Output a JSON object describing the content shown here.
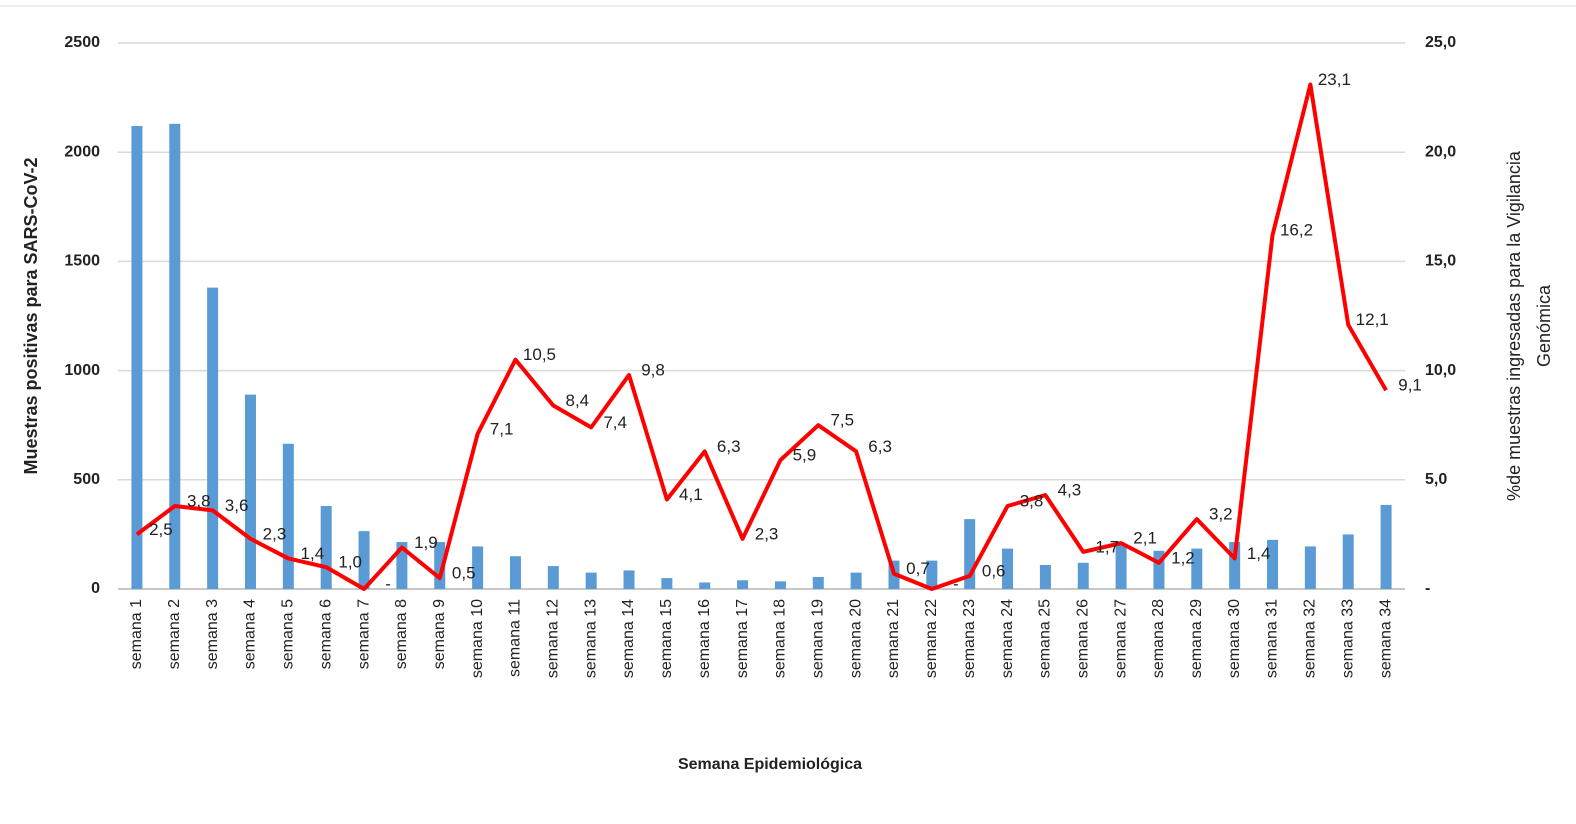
{
  "chart_data": {
    "type": "bar-line",
    "xlabel": "Semana Epidemiológica",
    "ylabel": "Muestras positivas para SARS-CoV-2",
    "y2label": [
      "%de muestras ingresadas para la Vigilancia",
      "Genómica"
    ],
    "categories": [
      "semana 1",
      "semana 2",
      "semana 3",
      "semana 4",
      "semana 5",
      "semana 6",
      "semana 7",
      "semana 8",
      "semana 9",
      "semana 10",
      "semana 11",
      "semana 12",
      "semana 13",
      "semana 14",
      "semana 15",
      "semana 16",
      "semana 17",
      "semana 18",
      "semana 19",
      "semana 20",
      "semana 21",
      "semana 22",
      "semana 23",
      "semana 24",
      "semana 25",
      "semana 26",
      "semana 27",
      "semana 28",
      "semana 29",
      "semana 30",
      "semana 31",
      "semana 32",
      "semana 33",
      "semana 34"
    ],
    "series": [
      {
        "type": "bar",
        "color": "#5b9bd5",
        "values": [
          2120,
          2130,
          1380,
          890,
          665,
          380,
          265,
          215,
          215,
          195,
          150,
          105,
          75,
          85,
          50,
          30,
          40,
          35,
          55,
          75,
          130,
          130,
          320,
          185,
          110,
          120,
          200,
          175,
          185,
          215,
          225,
          195,
          250,
          385
        ]
      },
      {
        "type": "line",
        "axis": "y2",
        "color": "#ff0000",
        "values": [
          2.5,
          3.8,
          3.6,
          2.3,
          1.4,
          1.0,
          0,
          1.9,
          0.5,
          7.1,
          10.5,
          8.4,
          7.4,
          9.8,
          4.1,
          6.3,
          2.3,
          5.9,
          7.5,
          6.3,
          0.7,
          0,
          0.6,
          3.8,
          4.3,
          1.7,
          2.1,
          1.2,
          3.2,
          1.4,
          16.2,
          23.1,
          12.1,
          9.1
        ],
        "value_labels": [
          "2,5",
          "3,8",
          "3,6",
          "2,3",
          "1,4",
          "1,0",
          "-",
          "1,9",
          "0,5",
          "7,1",
          "10,5",
          "8,4",
          "7,4",
          "9,8",
          "4,1",
          "6,3",
          "2,3",
          "5,9",
          "7,5",
          "6,3",
          "0,7",
          "-",
          "0,6",
          "3,8",
          "4,3",
          "1,7",
          "2,1",
          "1,2",
          "3,2",
          "1,4",
          "16,2",
          "23,1",
          "12,1",
          "9,1"
        ]
      }
    ],
    "ylim": [
      0,
      2500
    ],
    "yticks": [
      0,
      500,
      1000,
      1500,
      2000,
      2500
    ],
    "y2lim": [
      0,
      25
    ],
    "y2ticks": [
      {
        "value": 0,
        "label": "-"
      },
      {
        "value": 5,
        "label": "5,0"
      },
      {
        "value": 10,
        "label": "10,0"
      },
      {
        "value": 15,
        "label": "15,0"
      },
      {
        "value": 20,
        "label": "20,0"
      },
      {
        "value": 25,
        "label": "25,0"
      }
    ],
    "grid": true
  }
}
